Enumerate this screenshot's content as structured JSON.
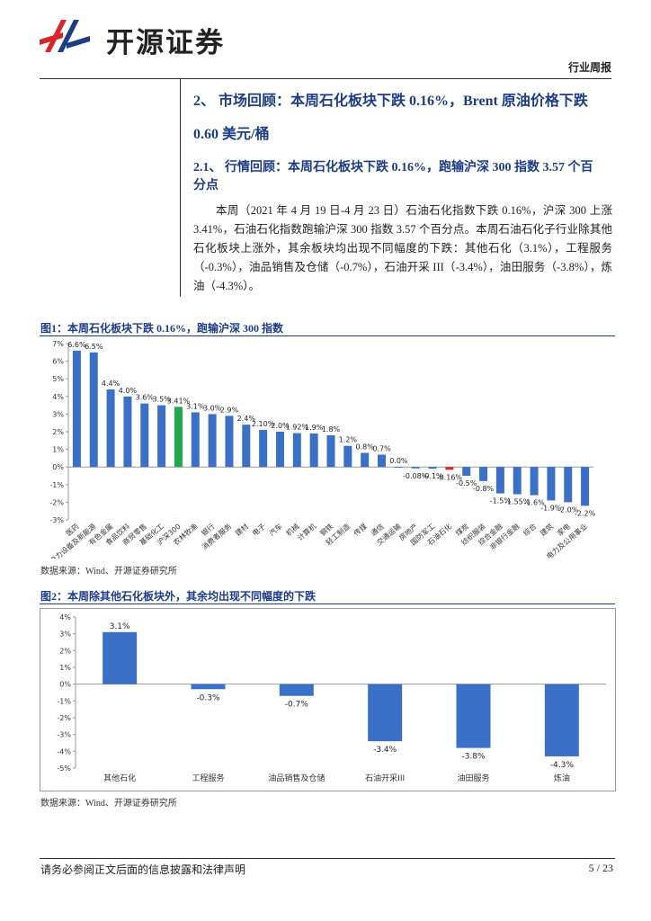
{
  "header": {
    "logo": "开源证券",
    "tag": "行业周报"
  },
  "section": {
    "heading_lines": [
      "2、 市场回顾：本周石化板块下跌 0.16%，Brent 原油价格下跌",
      "0.60 美元/桶"
    ],
    "subheading_lines": [
      "2.1、 行情回顾：本周石化板块下跌 0.16%，跑输沪深 300 指数 3.57 个百",
      "分点"
    ],
    "paragraph": "本周（2021 年 4 月 19 日-4 月 23 日）石油石化指数下跌 0.16%，沪深 300 上涨 3.41%，石油石化指数跑输沪深 300 指数 3.57 个百分点。本周石油石化子行业除其他石化板块上涨外，其余板块均出现不同幅度的下跌：其他石化（3.1%），工程服务（-0.3%），油品销售及仓储（-0.7%），石油开采 III（-3.4%），油田服务（-3.8%），炼油（-4.3%）。"
  },
  "figures": [
    {
      "caption": "图1：本周石化板块下跌 0.16%，跑输沪深 300 指数",
      "source": "数据来源：Wind、开源证券研究所"
    },
    {
      "caption": "图2：本周除其他石化板块外，其余均出现不同幅度的下跌",
      "source": "数据来源：Wind、开源证券研究所"
    }
  ],
  "footer": {
    "disclaimer": "请务必参阅正文后面的信息披露和法律声明",
    "page": "5 / 23"
  },
  "chart_data": [
    {
      "type": "bar",
      "categories": [
        "医药",
        "电力设备及新能源",
        "有色金属",
        "食品饮料",
        "商贸零售",
        "基础化工",
        "沪深300",
        "农林牧渔",
        "银行",
        "消费者服务",
        "建材",
        "电子",
        "汽车",
        "机械",
        "计算机",
        "钢铁",
        "轻工制造",
        "传媒",
        "通信",
        "交通运输",
        "房地产",
        "国防军工",
        "石油石化",
        "煤炭",
        "纺织服装",
        "综合金融",
        "非银行金融",
        "综合",
        "建筑",
        "家电",
        "电力及公用事业"
      ],
      "values": [
        6.6,
        6.5,
        4.4,
        4.0,
        3.6,
        3.5,
        3.41,
        3.1,
        3.0,
        2.9,
        2.4,
        2.1,
        2.0,
        1.92,
        1.9,
        1.8,
        1.2,
        0.8,
        0.7,
        0.0,
        -0.08,
        -0.1,
        -0.16,
        -0.5,
        -0.8,
        -1.5,
        -1.55,
        -1.6,
        -1.9,
        -2.0,
        -2.2
      ],
      "value_labels": [
        "6.6%",
        "6.5%",
        "4.4%",
        "4.0%",
        "3.6%",
        "3.5%",
        "3.41%",
        "3.1%",
        "3.0%",
        "2.9%",
        "2.4%",
        "2.10%",
        "2.0%",
        "1.92%",
        "1.9%",
        "1.8%",
        "1.2%",
        "0.8%",
        "0.7%",
        "0.0%",
        "-0.08%",
        "-0.1%",
        "-0.16%",
        "-0.5%",
        "-0.8%",
        "-1.5%",
        "-1.55%",
        "-1.6%",
        "-1.9%",
        "-2.0%",
        "-2.2%"
      ],
      "colors": [
        "#3a70c6",
        "#3a70c6",
        "#3a70c6",
        "#3a70c6",
        "#3a70c6",
        "#3a70c6",
        "#22a94b",
        "#3a70c6",
        "#3a70c6",
        "#3a70c6",
        "#3a70c6",
        "#3a70c6",
        "#3a70c6",
        "#3a70c6",
        "#3a70c6",
        "#3a70c6",
        "#3a70c6",
        "#3a70c6",
        "#3a70c6",
        "#3a70c6",
        "#3a70c6",
        "#3a70c6",
        "#d4282c",
        "#3a70c6",
        "#3a70c6",
        "#3a70c6",
        "#3a70c6",
        "#3a70c6",
        "#3a70c6",
        "#3a70c6",
        "#3a70c6"
      ],
      "ylim": [
        -3,
        7
      ],
      "yticks": [
        {
          "value": -3,
          "label": "-3%"
        },
        {
          "value": -2,
          "label": "-2%"
        },
        {
          "value": -1,
          "label": "-1%"
        },
        {
          "value": 0,
          "label": "0%"
        },
        {
          "value": 1,
          "label": "1%"
        },
        {
          "value": 2,
          "label": "2%"
        },
        {
          "value": 3,
          "label": "3%"
        },
        {
          "value": 4,
          "label": "4%"
        },
        {
          "value": 5,
          "label": "5%"
        },
        {
          "value": 6,
          "label": "6%"
        },
        {
          "value": 7,
          "label": "7%"
        }
      ],
      "grid": false
    },
    {
      "type": "bar",
      "categories": [
        "其他石化",
        "工程服务",
        "油品销售及仓储",
        "石油开采III",
        "油田服务",
        "炼油"
      ],
      "values": [
        3.1,
        -0.3,
        -0.7,
        -3.4,
        -3.8,
        -4.3
      ],
      "value_labels": [
        "3.1%",
        "-0.3%",
        "-0.7%",
        "-3.4%",
        "-3.8%",
        "-4.3%"
      ],
      "colors": [
        "#3a70c6",
        "#3a70c6",
        "#3a70c6",
        "#3a70c6",
        "#3a70c6",
        "#3a70c6"
      ],
      "ylim": [
        -5,
        4
      ],
      "yticks": [
        {
          "value": -5,
          "label": "-5%"
        },
        {
          "value": -4,
          "label": "-4%"
        },
        {
          "value": -3,
          "label": "-3%"
        },
        {
          "value": -2,
          "label": "-2%"
        },
        {
          "value": -1,
          "label": "-1%"
        },
        {
          "value": 0,
          "label": "0%"
        },
        {
          "value": 1,
          "label": "1%"
        },
        {
          "value": 2,
          "label": "2%"
        },
        {
          "value": 3,
          "label": "3%"
        },
        {
          "value": 4,
          "label": "4%"
        }
      ],
      "grid": false
    }
  ]
}
